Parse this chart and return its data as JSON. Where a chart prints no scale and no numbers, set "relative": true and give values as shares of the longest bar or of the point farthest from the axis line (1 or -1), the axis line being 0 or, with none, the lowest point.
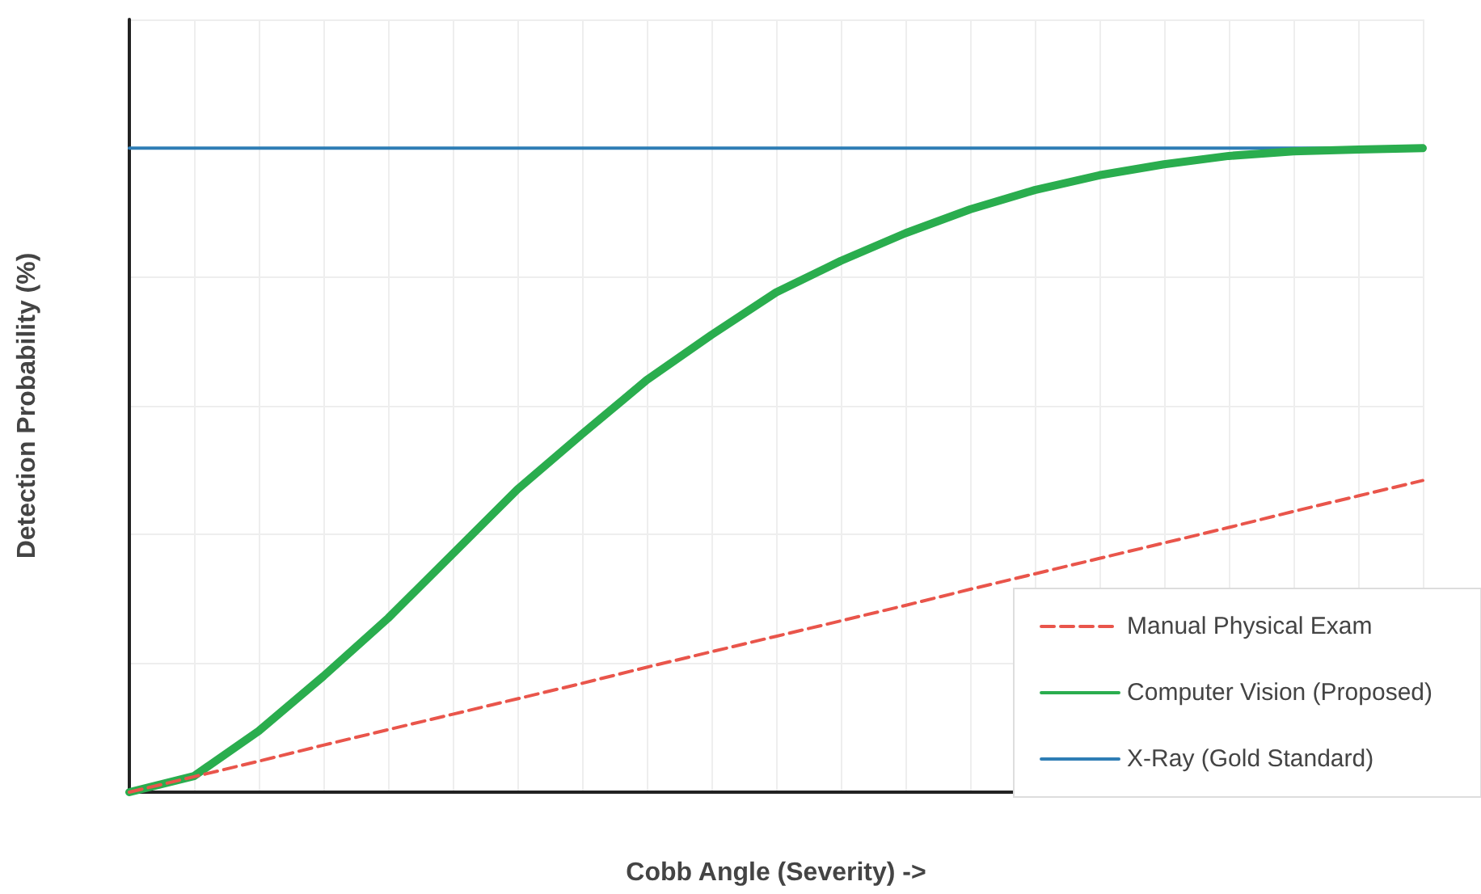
{
  "chart_data": {
    "type": "line",
    "relative": true,
    "xlabel": "Cobb Angle (Severity) ->",
    "ylabel": "Detection Probability (%)",
    "categories": [
      null,
      null,
      null,
      null,
      null,
      null,
      null,
      null,
      null,
      null,
      null,
      null,
      null,
      null,
      null,
      null,
      null,
      null,
      null,
      null,
      null
    ],
    "series": [
      {
        "name": "Manual Physical Exam",
        "color": "#e9554b",
        "line_style": "dashed",
        "values": [
          0,
          0.024,
          0.048,
          0.073,
          0.097,
          0.121,
          0.145,
          0.169,
          0.194,
          0.218,
          0.242,
          0.266,
          0.29,
          0.315,
          0.339,
          0.363,
          0.387,
          0.411,
          0.436,
          0.46,
          0.484
        ]
      },
      {
        "name": "Computer Vision (Proposed)",
        "color": "#2aad4e",
        "line_style": "solid",
        "values": [
          0,
          0.025,
          0.095,
          0.18,
          0.27,
          0.37,
          0.47,
          0.556,
          0.64,
          0.71,
          0.776,
          0.825,
          0.868,
          0.905,
          0.935,
          0.958,
          0.975,
          0.988,
          0.995,
          0.998,
          1
        ]
      },
      {
        "name": "X-Ray (Gold Standard)",
        "color": "#2e7db5",
        "line_style": "solid",
        "values": [
          1,
          1,
          1,
          1,
          1,
          1,
          1,
          1,
          1,
          1,
          1,
          1,
          1,
          1,
          1,
          1,
          1,
          1,
          1,
          1,
          1
        ]
      }
    ],
    "grid": true,
    "legend": "bottom right",
    "marker": "none",
    "tick_labels": false
  }
}
